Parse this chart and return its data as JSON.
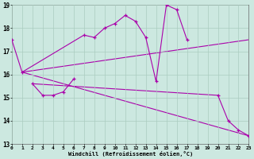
{
  "bg_color": "#cce8e0",
  "grid_color": "#aaccc0",
  "line_color": "#aa00aa",
  "xlabel": "Windchill (Refroidissement éolien,°C)",
  "xlim": [
    0,
    23
  ],
  "ylim": [
    13,
    19
  ],
  "xticks": [
    0,
    1,
    2,
    3,
    4,
    5,
    6,
    7,
    8,
    9,
    10,
    11,
    12,
    13,
    14,
    15,
    16,
    17,
    18,
    19,
    20,
    21,
    22,
    23
  ],
  "yticks": [
    13,
    14,
    15,
    16,
    17,
    18,
    19
  ],
  "series_marked": [
    {
      "x": [
        0,
        1,
        7,
        8,
        9,
        10,
        11,
        12,
        13,
        14,
        15,
        16,
        17
      ],
      "y": [
        17.5,
        16.1,
        17.7,
        17.6,
        18.0,
        18.2,
        18.55,
        18.3,
        17.6,
        15.7,
        19.0,
        18.8,
        17.5
      ]
    },
    {
      "x": [
        2,
        3,
        4,
        5,
        6
      ],
      "y": [
        15.6,
        15.1,
        15.1,
        15.25,
        15.8
      ]
    },
    {
      "x": [
        20,
        21,
        22,
        23
      ],
      "y": [
        15.1,
        14.0,
        13.6,
        13.35
      ]
    }
  ],
  "series_straight": [
    {
      "x": [
        1,
        23
      ],
      "y": [
        16.1,
        17.5
      ]
    },
    {
      "x": [
        1,
        23
      ],
      "y": [
        16.1,
        13.35
      ]
    },
    {
      "x": [
        2,
        20
      ],
      "y": [
        15.6,
        15.1
      ]
    }
  ]
}
